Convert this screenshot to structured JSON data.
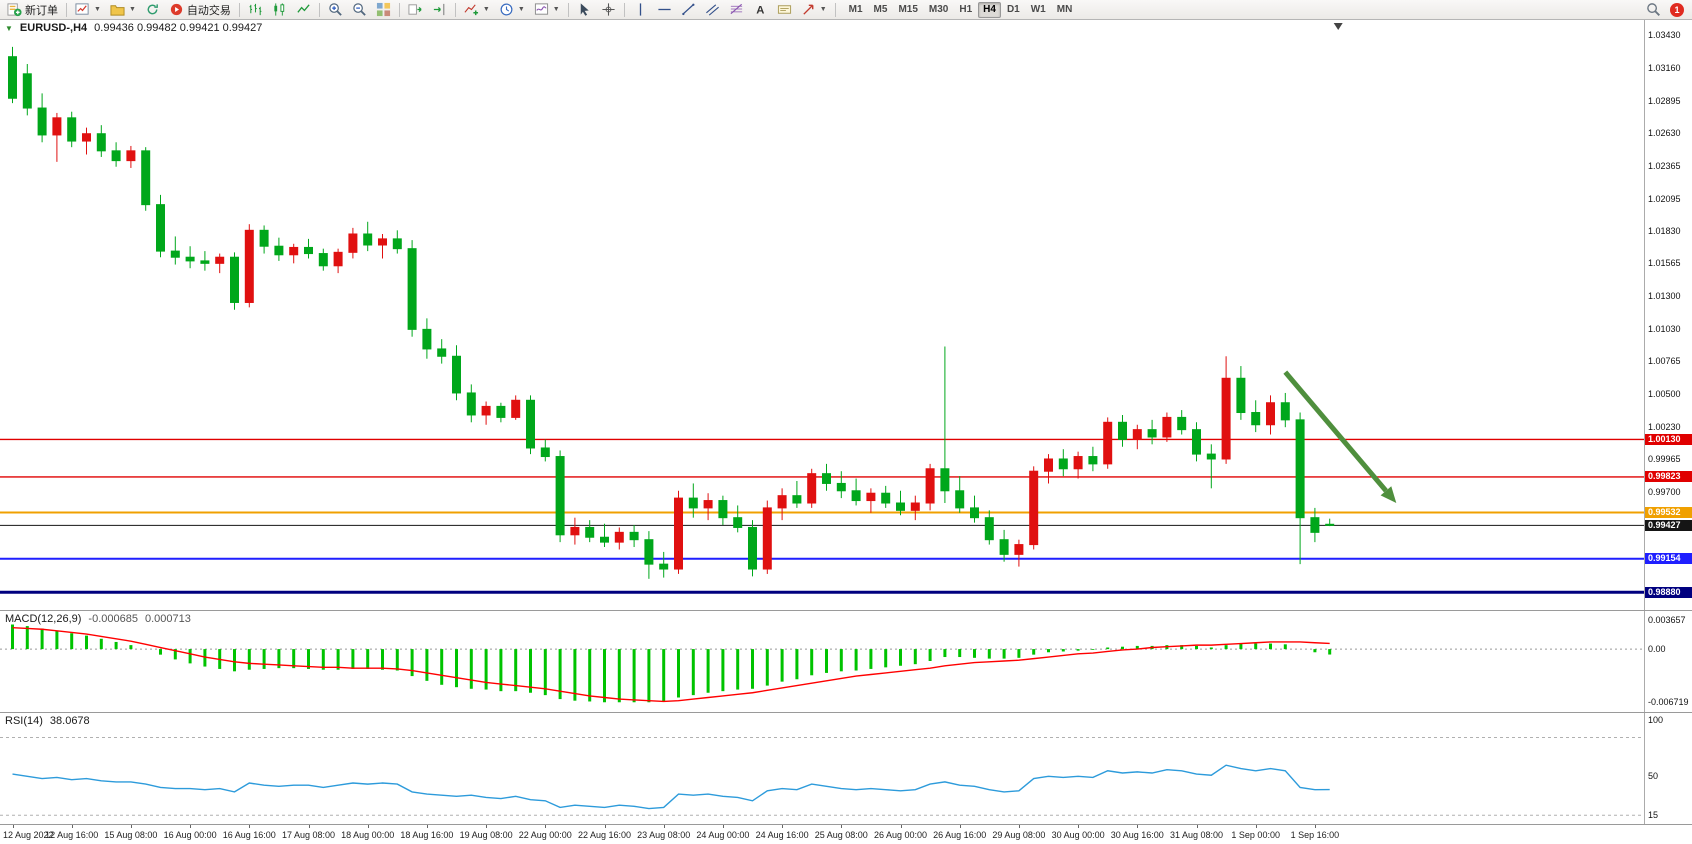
{
  "toolbar": {
    "new_order_label": "新订单",
    "auto_trading_label": "自动交易",
    "timeframes": [
      "M1",
      "M5",
      "M15",
      "M30",
      "H1",
      "H4",
      "D1",
      "W1",
      "MN"
    ],
    "active_timeframe": "H4",
    "notification_count": "1",
    "icons": [
      "new-order-icon",
      "new-chart-icon",
      "profiles-icon",
      "refresh-icon",
      "auto-trading-icon",
      "bars-chart-icon",
      "candlestick-chart-icon",
      "line-chart-icon",
      "zoom-in-icon",
      "zoom-out-icon",
      "tile-windows-icon",
      "auto-scroll-icon",
      "chart-shift-icon",
      "indicators-icon",
      "period-icon",
      "templates-icon",
      "cursor-icon",
      "crosshair-icon",
      "vertical-line-icon",
      "horizontal-line-icon",
      "trendline-icon",
      "channel-icon",
      "fibonacci-icon",
      "text-icon",
      "label-icon",
      "arrow-object-icon",
      "search-icon",
      "notification-badge"
    ]
  },
  "chart": {
    "symbol_label": "EURUSD-,H4",
    "ohlc_label": "0.99436  0.99482  0.99421  0.99427",
    "macd_label": "MACD(12,26,9)",
    "macd_value1": "-0.000685",
    "macd_value2": "0.000713",
    "rsi_label": "RSI(14)",
    "rsi_value": "38.0678"
  },
  "chart_data": {
    "type": "candlestick",
    "symbol": "EURUSD-",
    "timeframe": "H4",
    "current": {
      "open": 0.99436,
      "high": 0.99482,
      "low": 0.99421,
      "close": 0.99427
    },
    "style": {
      "bull_color": "#e01010",
      "bear_color": "#00a71b",
      "price_max": 1.0356,
      "price_min": 0.98735,
      "macd_max": 0.0048,
      "macd_min": -0.0078,
      "macd_hist_color": "#00c300",
      "macd_signal_color": "#ff0000",
      "rsi_max": 107,
      "rsi_min": 8,
      "rsi_line_color": "#2d9bdb"
    },
    "price_axis_labels": [
      "1.03430",
      "1.03160",
      "1.02895",
      "1.02630",
      "1.02365",
      "1.02095",
      "1.01830",
      "1.01565",
      "1.01300",
      "1.01030",
      "1.00765",
      "1.00500",
      "1.00230",
      "0.99965",
      "0.99700"
    ],
    "hlines": [
      {
        "price": 1.0013,
        "color": "#e00000",
        "width": 1.3,
        "label": "1.00130"
      },
      {
        "price": 0.99823,
        "color": "#e00000",
        "width": 1.3,
        "label": "0.99823"
      },
      {
        "price": 0.99532,
        "color": "#f0a000",
        "width": 2,
        "label": "0.99532"
      },
      {
        "price": 0.99427,
        "color": "#151515",
        "width": 1,
        "label": "0.99427"
      },
      {
        "price": 0.99154,
        "color": "#1f1fff",
        "width": 2,
        "label": "0.99154"
      },
      {
        "price": 0.9888,
        "color": "#00007f",
        "width": 3,
        "label": "0.98880"
      }
    ],
    "arrow": {
      "i1": 86,
      "p1": 1.0068,
      "i2": 93.5,
      "p2": 0.9961,
      "color": "#4f8f3d"
    },
    "x_labels": [
      "12 Aug 2022",
      "12 Aug 16:00",
      "15 Aug 08:00",
      "16 Aug 00:00",
      "16 Aug 16:00",
      "17 Aug 08:00",
      "18 Aug 00:00",
      "18 Aug 16:00",
      "19 Aug 08:00",
      "22 Aug 00:00",
      "22 Aug 16:00",
      "23 Aug 08:00",
      "24 Aug 00:00",
      "24 Aug 16:00",
      "25 Aug 08:00",
      "26 Aug 00:00",
      "26 Aug 16:00",
      "29 Aug 08:00",
      "30 Aug 00:00",
      "30 Aug 16:00",
      "31 Aug 08:00",
      "1 Sep 00:00",
      "1 Sep 16:00"
    ],
    "candles": [
      [
        1.0326,
        1.0334,
        1.0288,
        1.0292
      ],
      [
        1.0312,
        1.032,
        1.0278,
        1.0284
      ],
      [
        1.0284,
        1.0296,
        1.0256,
        1.0262
      ],
      [
        1.0262,
        1.028,
        1.024,
        1.0276
      ],
      [
        1.0276,
        1.0281,
        1.0252,
        1.0257
      ],
      [
        1.0257,
        1.0268,
        1.0246,
        1.0263
      ],
      [
        1.0263,
        1.027,
        1.0244,
        1.0249
      ],
      [
        1.0249,
        1.0256,
        1.0236,
        1.0241
      ],
      [
        1.0241,
        1.0253,
        1.0235,
        1.0249
      ],
      [
        1.0249,
        1.0252,
        1.02,
        1.0205
      ],
      [
        1.0205,
        1.0213,
        1.0162,
        1.0167
      ],
      [
        1.0167,
        1.0179,
        1.0156,
        1.0162
      ],
      [
        1.0162,
        1.0171,
        1.0153,
        1.0159
      ],
      [
        1.0159,
        1.0167,
        1.0151,
        1.0157
      ],
      [
        1.0157,
        1.0165,
        1.0149,
        1.0162
      ],
      [
        1.0162,
        1.0166,
        1.0119,
        1.0125
      ],
      [
        1.0125,
        1.0189,
        1.0121,
        1.0184
      ],
      [
        1.0184,
        1.0188,
        1.0165,
        1.0171
      ],
      [
        1.0171,
        1.0178,
        1.0159,
        1.0164
      ],
      [
        1.0164,
        1.0173,
        1.0157,
        1.017
      ],
      [
        1.017,
        1.0177,
        1.0161,
        1.0165
      ],
      [
        1.0165,
        1.0169,
        1.0151,
        1.0155
      ],
      [
        1.0155,
        1.0169,
        1.0149,
        1.0166
      ],
      [
        1.0166,
        1.0186,
        1.0161,
        1.0181
      ],
      [
        1.0181,
        1.0191,
        1.0167,
        1.0172
      ],
      [
        1.0172,
        1.0181,
        1.0161,
        1.0177
      ],
      [
        1.0177,
        1.0184,
        1.0165,
        1.0169
      ],
      [
        1.0169,
        1.0176,
        1.0097,
        1.0103
      ],
      [
        1.0103,
        1.0112,
        1.0079,
        1.0087
      ],
      [
        1.0087,
        1.0095,
        1.0075,
        1.0081
      ],
      [
        1.0081,
        1.009,
        1.0045,
        1.0051
      ],
      [
        1.0051,
        1.0058,
        1.0027,
        1.0033
      ],
      [
        1.0033,
        1.0044,
        1.0025,
        1.004
      ],
      [
        1.004,
        1.0043,
        1.0027,
        1.0031
      ],
      [
        1.0031,
        1.0049,
        1.0029,
        1.0045
      ],
      [
        1.0045,
        1.0049,
        1.0001,
        1.0006
      ],
      [
        1.0006,
        1.0013,
        0.9995,
        0.9999
      ],
      [
        0.9999,
        1.0004,
        0.9929,
        0.9935
      ],
      [
        0.9935,
        0.9949,
        0.9927,
        0.9941
      ],
      [
        0.9941,
        0.9947,
        0.9929,
        0.9933
      ],
      [
        0.9933,
        0.9944,
        0.9925,
        0.9929
      ],
      [
        0.9929,
        0.9941,
        0.9923,
        0.9937
      ],
      [
        0.9937,
        0.9943,
        0.9925,
        0.9931
      ],
      [
        0.9931,
        0.9938,
        0.9899,
        0.9911
      ],
      [
        0.9911,
        0.9921,
        0.99,
        0.9907
      ],
      [
        0.9907,
        0.9971,
        0.9903,
        0.9965
      ],
      [
        0.9965,
        0.9977,
        0.9949,
        0.9957
      ],
      [
        0.9957,
        0.9969,
        0.9947,
        0.9963
      ],
      [
        0.9963,
        0.9967,
        0.9943,
        0.9949
      ],
      [
        0.9949,
        0.9959,
        0.9937,
        0.9941
      ],
      [
        0.9941,
        0.9947,
        0.9901,
        0.9907
      ],
      [
        0.9907,
        0.9963,
        0.9903,
        0.9957
      ],
      [
        0.9957,
        0.9973,
        0.9947,
        0.9967
      ],
      [
        0.9967,
        0.9979,
        0.9957,
        0.9961
      ],
      [
        0.9961,
        0.9989,
        0.9957,
        0.9985
      ],
      [
        0.9985,
        0.9993,
        0.9971,
        0.9977
      ],
      [
        0.9977,
        0.9987,
        0.9965,
        0.9971
      ],
      [
        0.9971,
        0.9981,
        0.9959,
        0.9963
      ],
      [
        0.9963,
        0.9973,
        0.9953,
        0.9969
      ],
      [
        0.9969,
        0.9975,
        0.9957,
        0.9961
      ],
      [
        0.9961,
        0.9971,
        0.9951,
        0.9955
      ],
      [
        0.9955,
        0.9967,
        0.9947,
        0.9961
      ],
      [
        0.9961,
        0.9993,
        0.9955,
        0.9989
      ],
      [
        0.9989,
        1.0089,
        0.9961,
        0.9971
      ],
      [
        0.9971,
        0.9983,
        0.9953,
        0.9957
      ],
      [
        0.9957,
        0.9967,
        0.9945,
        0.9949
      ],
      [
        0.9949,
        0.9955,
        0.9927,
        0.9931
      ],
      [
        0.9931,
        0.9939,
        0.9913,
        0.9919
      ],
      [
        0.9919,
        0.9931,
        0.9909,
        0.9927
      ],
      [
        0.9927,
        0.9991,
        0.9923,
        0.9987
      ],
      [
        0.9987,
        1.0001,
        0.9977,
        0.9997
      ],
      [
        0.9997,
        1.0005,
        0.9983,
        0.9989
      ],
      [
        0.9989,
        1.0003,
        0.9981,
        0.9999
      ],
      [
        0.9999,
        1.0007,
        0.9987,
        0.9993
      ],
      [
        0.9993,
        1.0031,
        0.9989,
        1.0027
      ],
      [
        1.0027,
        1.0033,
        1.0007,
        1.0013
      ],
      [
        1.0013,
        1.0025,
        1.0005,
        1.0021
      ],
      [
        1.0021,
        1.0029,
        1.0009,
        1.0015
      ],
      [
        1.0015,
        1.0035,
        1.0011,
        1.0031
      ],
      [
        1.0031,
        1.0037,
        1.0017,
        1.0021
      ],
      [
        1.0021,
        1.0027,
        0.9995,
        1.0001
      ],
      [
        1.0001,
        1.0009,
        0.9973,
        0.9997
      ],
      [
        0.9997,
        1.0081,
        0.9993,
        1.0063
      ],
      [
        1.0063,
        1.0073,
        1.0029,
        1.0035
      ],
      [
        1.0035,
        1.0045,
        1.0019,
        1.0025
      ],
      [
        1.0025,
        1.0049,
        1.0017,
        1.0043
      ],
      [
        1.0043,
        1.0051,
        1.0023,
        1.0029
      ],
      [
        1.0029,
        1.0035,
        0.9911,
        0.9949
      ],
      [
        0.9949,
        0.9957,
        0.9929,
        0.9937
      ],
      [
        0.99436,
        0.99482,
        0.99421,
        0.99427
      ]
    ],
    "macd": {
      "axis_labels": [
        "0.003657",
        "0.00",
        "-0.006719"
      ],
      "histogram": [
        0.0031,
        0.0029,
        0.0026,
        0.0023,
        0.002,
        0.0017,
        0.0013,
        0.0009,
        0.0005,
        0.0,
        -0.0007,
        -0.0013,
        -0.0018,
        -0.0022,
        -0.0025,
        -0.0028,
        -0.0026,
        -0.0025,
        -0.0024,
        -0.0024,
        -0.0025,
        -0.0026,
        -0.0026,
        -0.0025,
        -0.0025,
        -0.0026,
        -0.0027,
        -0.0034,
        -0.004,
        -0.0045,
        -0.0048,
        -0.005,
        -0.0051,
        -0.0053,
        -0.0053,
        -0.0055,
        -0.0058,
        -0.0063,
        -0.0065,
        -0.0066,
        -0.0067,
        -0.0067,
        -0.0067,
        -0.0067,
        -0.0066,
        -0.0061,
        -0.0058,
        -0.0055,
        -0.0053,
        -0.0051,
        -0.005,
        -0.0046,
        -0.0041,
        -0.0038,
        -0.0033,
        -0.003,
        -0.0028,
        -0.0027,
        -0.0025,
        -0.0023,
        -0.0021,
        -0.0019,
        -0.0015,
        -0.001,
        -0.001,
        -0.0011,
        -0.0012,
        -0.0012,
        -0.0011,
        -0.0007,
        -0.0004,
        -0.0003,
        -0.0002,
        -0.0001,
        0.0002,
        0.0003,
        0.0004,
        0.0004,
        0.0005,
        0.0005,
        0.0004,
        0.0002,
        0.0005,
        0.0007,
        0.0007,
        0.0007,
        0.0006,
        0.0,
        -0.0004,
        -0.000685
      ],
      "signal": [
        0.0027,
        0.0026,
        0.0025,
        0.0023,
        0.0021,
        0.0019,
        0.0016,
        0.0013,
        0.001,
        0.0006,
        0.0002,
        -0.0002,
        -0.0006,
        -0.001,
        -0.0013,
        -0.0016,
        -0.0018,
        -0.0019,
        -0.002,
        -0.0021,
        -0.0022,
        -0.0023,
        -0.0023,
        -0.0024,
        -0.0024,
        -0.0024,
        -0.0025,
        -0.0027,
        -0.003,
        -0.0033,
        -0.0036,
        -0.0039,
        -0.0042,
        -0.0044,
        -0.0046,
        -0.0048,
        -0.005,
        -0.0053,
        -0.0056,
        -0.0059,
        -0.0061,
        -0.0063,
        -0.0064,
        -0.0065,
        -0.0066,
        -0.0065,
        -0.0063,
        -0.0061,
        -0.0059,
        -0.0057,
        -0.0055,
        -0.0052,
        -0.0049,
        -0.0046,
        -0.0043,
        -0.004,
        -0.0037,
        -0.0034,
        -0.0032,
        -0.003,
        -0.0028,
        -0.0026,
        -0.0024,
        -0.0021,
        -0.0019,
        -0.0017,
        -0.0016,
        -0.0015,
        -0.0014,
        -0.0012,
        -0.001,
        -0.0008,
        -0.0006,
        -0.0005,
        -0.0003,
        -0.0001,
        0.0,
        0.0002,
        0.0003,
        0.0004,
        0.0005,
        0.0005,
        0.0006,
        0.0007,
        0.0008,
        0.0009,
        0.0009,
        0.0009,
        0.0008,
        0.000713
      ]
    },
    "rsi": {
      "axis_labels": [
        "100",
        "50",
        "15"
      ],
      "levels": [
        85,
        15
      ],
      "values": [
        52,
        50,
        48,
        49,
        47,
        48,
        46,
        45,
        45,
        43,
        40,
        39,
        39,
        38,
        39,
        36,
        44,
        42,
        41,
        42,
        42,
        40,
        42,
        44,
        43,
        44,
        43,
        36,
        34,
        33,
        32,
        33,
        31,
        30,
        32,
        29,
        28,
        22,
        24,
        23,
        22,
        24,
        23,
        21,
        22,
        34,
        33,
        34,
        32,
        31,
        28,
        37,
        39,
        38,
        43,
        41,
        39,
        38,
        39,
        38,
        37,
        38,
        43,
        45,
        42,
        41,
        38,
        36,
        37,
        48,
        50,
        49,
        50,
        49,
        55,
        53,
        54,
        53,
        56,
        55,
        52,
        51,
        60,
        57,
        55,
        57,
        55,
        40,
        38,
        38.07
      ]
    }
  }
}
